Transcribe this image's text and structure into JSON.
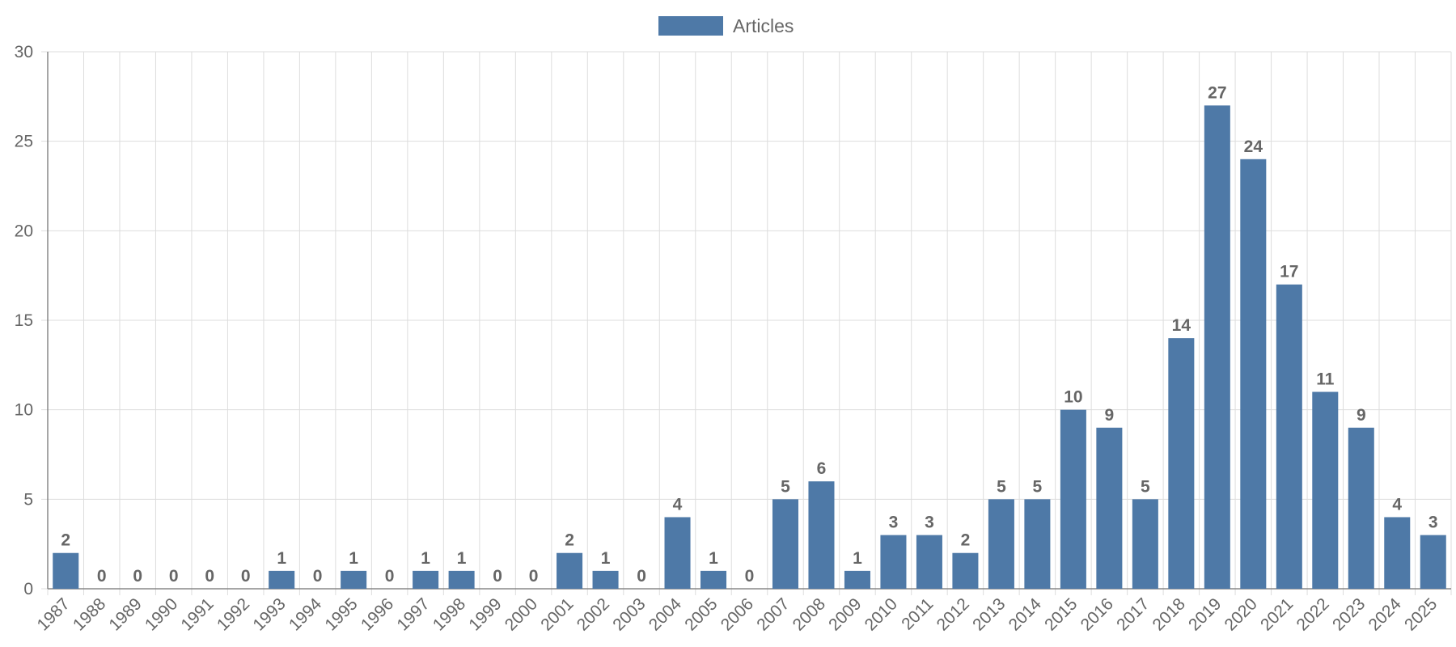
{
  "chart_data": {
    "type": "bar",
    "title": "",
    "xlabel": "",
    "ylabel": "",
    "legend": {
      "position": "top",
      "entries": [
        "Articles"
      ]
    },
    "grid": true,
    "ylim": [
      0,
      30
    ],
    "y_ticks": [
      0,
      5,
      10,
      15,
      20,
      25,
      30
    ],
    "categories": [
      "1987",
      "1988",
      "1989",
      "1990",
      "1991",
      "1992",
      "1993",
      "1994",
      "1995",
      "1996",
      "1997",
      "1998",
      "1999",
      "2000",
      "2001",
      "2002",
      "2003",
      "2004",
      "2005",
      "2006",
      "2007",
      "2008",
      "2009",
      "2010",
      "2011",
      "2012",
      "2013",
      "2014",
      "2015",
      "2016",
      "2017",
      "2018",
      "2019",
      "2020",
      "2021",
      "2022",
      "2023",
      "2024",
      "2025"
    ],
    "series": [
      {
        "name": "Articles",
        "color": "#4e79a7",
        "values": [
          2,
          0,
          0,
          0,
          0,
          0,
          1,
          0,
          1,
          0,
          1,
          1,
          0,
          0,
          2,
          1,
          0,
          4,
          1,
          0,
          5,
          6,
          1,
          3,
          3,
          2,
          5,
          5,
          10,
          9,
          5,
          14,
          27,
          24,
          17,
          11,
          9,
          4,
          3
        ]
      }
    ]
  }
}
